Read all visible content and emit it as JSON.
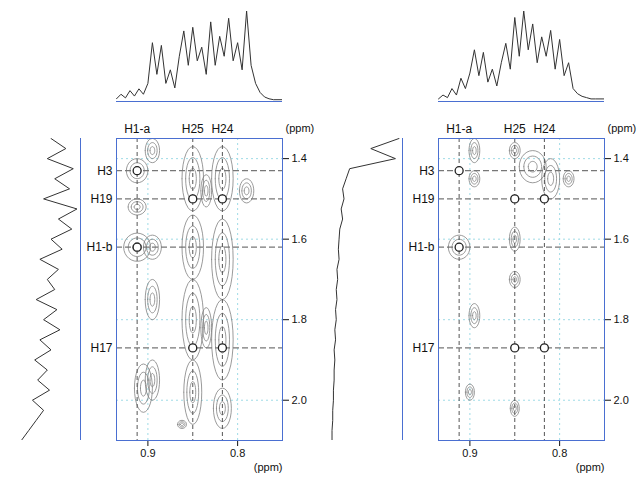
{
  "chart_data": [
    {
      "type": "contour",
      "color": "#808080",
      "grid": true,
      "x_label": "(ppm)",
      "y_label": "(ppm)",
      "xlim": [
        0.935,
        0.75
      ],
      "xticks": [
        0.9,
        0.8
      ],
      "ylim": [
        1.35,
        2.1
      ],
      "yticks": [
        1.4,
        1.6,
        1.8,
        {
          "value": 2.0,
          "label": "2.0"
        }
      ],
      "columns": [
        {
          "label": "H1-a",
          "x": 0.912
        },
        {
          "label": "H25",
          "x": 0.85
        },
        {
          "label": "H24",
          "x": 0.817
        }
      ],
      "rows": [
        {
          "label": "H3",
          "y": 1.43
        },
        {
          "label": "H19",
          "y": 1.5
        },
        {
          "label": "H1-b",
          "y": 1.62
        },
        {
          "label": "H17",
          "y": 1.87
        }
      ],
      "markers": [
        {
          "x": 0.912,
          "y": 1.43
        },
        {
          "x": 0.912,
          "y": 1.62
        },
        {
          "x": 0.85,
          "y": 1.5
        },
        {
          "x": 0.817,
          "y": 1.5
        },
        {
          "x": 0.85,
          "y": 1.87
        },
        {
          "x": 0.817,
          "y": 1.87
        }
      ],
      "peaks": [
        {
          "x": 0.912,
          "y": 1.43,
          "dx": 0.012,
          "dy": 0.03
        },
        {
          "x": 0.912,
          "y": 1.62,
          "dx": 0.015,
          "dy": 0.035
        },
        {
          "x": 0.912,
          "y": 1.52,
          "dx": 0.01,
          "dy": 0.02
        },
        {
          "x": 0.905,
          "y": 1.97,
          "dx": 0.01,
          "dy": 0.06
        },
        {
          "x": 0.895,
          "y": 1.38,
          "dx": 0.008,
          "dy": 0.03
        },
        {
          "x": 0.895,
          "y": 1.62,
          "dx": 0.01,
          "dy": 0.03
        },
        {
          "x": 0.895,
          "y": 1.75,
          "dx": 0.008,
          "dy": 0.05
        },
        {
          "x": 0.895,
          "y": 1.95,
          "dx": 0.008,
          "dy": 0.05
        },
        {
          "x": 0.85,
          "y": 1.45,
          "dx": 0.012,
          "dy": 0.08
        },
        {
          "x": 0.85,
          "y": 1.62,
          "dx": 0.012,
          "dy": 0.08
        },
        {
          "x": 0.85,
          "y": 1.8,
          "dx": 0.012,
          "dy": 0.1
        },
        {
          "x": 0.85,
          "y": 1.98,
          "dx": 0.01,
          "dy": 0.08
        },
        {
          "x": 0.817,
          "y": 1.45,
          "dx": 0.012,
          "dy": 0.08
        },
        {
          "x": 0.817,
          "y": 1.65,
          "dx": 0.012,
          "dy": 0.1
        },
        {
          "x": 0.817,
          "y": 1.85,
          "dx": 0.012,
          "dy": 0.1
        },
        {
          "x": 0.817,
          "y": 2.02,
          "dx": 0.01,
          "dy": 0.05
        },
        {
          "x": 0.835,
          "y": 1.48,
          "dx": 0.006,
          "dy": 0.04
        },
        {
          "x": 0.835,
          "y": 1.82,
          "dx": 0.006,
          "dy": 0.05
        },
        {
          "x": 0.79,
          "y": 1.48,
          "dx": 0.008,
          "dy": 0.03
        },
        {
          "x": 0.862,
          "y": 2.06,
          "dx": 0.005,
          "dy": 0.01
        }
      ],
      "top_projection": {
        "x": [
          0.935,
          0.93,
          0.925,
          0.92,
          0.915,
          0.91,
          0.905,
          0.9,
          0.895,
          0.89,
          0.885,
          0.88,
          0.875,
          0.87,
          0.865,
          0.86,
          0.855,
          0.85,
          0.845,
          0.84,
          0.835,
          0.83,
          0.825,
          0.82,
          0.815,
          0.81,
          0.805,
          0.8,
          0.795,
          0.79,
          0.785,
          0.78,
          0.775,
          0.77,
          0.765,
          0.76,
          0.755,
          0.75
        ],
        "values": [
          3,
          8,
          4,
          12,
          6,
          14,
          8,
          20,
          65,
          30,
          62,
          20,
          35,
          15,
          50,
          78,
          40,
          82,
          45,
          60,
          30,
          88,
          40,
          72,
          50,
          92,
          45,
          65,
          35,
          100,
          40,
          20,
          10,
          5,
          3,
          2,
          2,
          2
        ]
      },
      "left_projection": {
        "y": [
          1.35,
          1.375,
          1.4,
          1.425,
          1.45,
          1.475,
          1.5,
          1.525,
          1.55,
          1.575,
          1.6,
          1.625,
          1.65,
          1.675,
          1.7,
          1.725,
          1.75,
          1.775,
          1.8,
          1.825,
          1.85,
          1.875,
          1.9,
          1.925,
          1.95,
          1.975,
          2.0,
          2.025,
          2.05,
          2.075,
          2.1
        ],
        "values": [
          60,
          80,
          55,
          90,
          65,
          85,
          50,
          95,
          70,
          88,
          60,
          75,
          45,
          70,
          55,
          65,
          40,
          68,
          50,
          72,
          45,
          60,
          38,
          55,
          42,
          58,
          35,
          50,
          40,
          30,
          20
        ]
      }
    },
    {
      "type": "contour",
      "color": "#808080",
      "grid": true,
      "x_label": "(ppm)",
      "y_label": "(ppm)",
      "xlim": [
        0.935,
        0.75
      ],
      "xticks": [
        0.9,
        0.8
      ],
      "ylim": [
        1.35,
        2.1
      ],
      "yticks": [
        1.4,
        1.6,
        1.8,
        {
          "value": 2.0,
          "label": "2.0"
        }
      ],
      "columns": [
        {
          "label": "H1-a",
          "x": 0.912
        },
        {
          "label": "H25",
          "x": 0.85
        },
        {
          "label": "H24",
          "x": 0.817
        }
      ],
      "rows": [
        {
          "label": "H3",
          "y": 1.43
        },
        {
          "label": "H19",
          "y": 1.5
        },
        {
          "label": "H1-b",
          "y": 1.62
        },
        {
          "label": "H17",
          "y": 1.87
        }
      ],
      "markers": [
        {
          "x": 0.912,
          "y": 1.43
        },
        {
          "x": 0.912,
          "y": 1.62
        },
        {
          "x": 0.85,
          "y": 1.5
        },
        {
          "x": 0.817,
          "y": 1.5
        },
        {
          "x": 0.85,
          "y": 1.87
        },
        {
          "x": 0.817,
          "y": 1.87
        }
      ],
      "peaks": [
        {
          "x": 0.912,
          "y": 1.62,
          "dx": 0.012,
          "dy": 0.03
        },
        {
          "x": 0.895,
          "y": 1.38,
          "dx": 0.006,
          "dy": 0.03
        },
        {
          "x": 0.895,
          "y": 1.45,
          "dx": 0.006,
          "dy": 0.02
        },
        {
          "x": 0.85,
          "y": 1.38,
          "dx": 0.006,
          "dy": 0.02
        },
        {
          "x": 0.83,
          "y": 1.42,
          "dx": 0.015,
          "dy": 0.04
        },
        {
          "x": 0.81,
          "y": 1.45,
          "dx": 0.01,
          "dy": 0.05
        },
        {
          "x": 0.895,
          "y": 1.79,
          "dx": 0.006,
          "dy": 0.03
        },
        {
          "x": 0.85,
          "y": 1.6,
          "dx": 0.006,
          "dy": 0.03
        },
        {
          "x": 0.85,
          "y": 1.7,
          "dx": 0.006,
          "dy": 0.02
        },
        {
          "x": 0.85,
          "y": 2.02,
          "dx": 0.005,
          "dy": 0.02
        },
        {
          "x": 0.9,
          "y": 1.98,
          "dx": 0.005,
          "dy": 0.02
        },
        {
          "x": 0.79,
          "y": 1.45,
          "dx": 0.006,
          "dy": 0.02
        }
      ],
      "top_projection": {
        "x": [
          0.935,
          0.93,
          0.925,
          0.92,
          0.915,
          0.91,
          0.905,
          0.9,
          0.895,
          0.89,
          0.885,
          0.88,
          0.875,
          0.87,
          0.865,
          0.86,
          0.855,
          0.85,
          0.845,
          0.84,
          0.835,
          0.83,
          0.825,
          0.82,
          0.815,
          0.81,
          0.805,
          0.8,
          0.795,
          0.79,
          0.785,
          0.78,
          0.775,
          0.77,
          0.765,
          0.76,
          0.755,
          0.75
        ],
        "values": [
          2,
          5,
          3,
          10,
          5,
          18,
          10,
          22,
          40,
          20,
          38,
          15,
          25,
          12,
          30,
          45,
          25,
          65,
          35,
          70,
          40,
          60,
          30,
          50,
          35,
          55,
          25,
          48,
          20,
          30,
          10,
          6,
          4,
          3,
          2,
          2,
          2,
          2
        ]
      },
      "left_projection": {
        "y": [
          1.35,
          1.375,
          1.4,
          1.425,
          1.45,
          1.475,
          1.5,
          1.525,
          1.55,
          1.575,
          1.6,
          1.625,
          1.65,
          1.675,
          1.7,
          1.725,
          1.75,
          1.775,
          1.8,
          1.825,
          1.85,
          1.875,
          1.9,
          1.925,
          1.95,
          1.975,
          2.0,
          2.025,
          2.05,
          2.075,
          2.1
        ],
        "values": [
          100,
          60,
          95,
          30,
          25,
          20,
          22,
          18,
          20,
          16,
          15,
          14,
          15,
          12,
          13,
          11,
          12,
          10,
          11,
          9,
          10,
          8,
          9,
          8,
          8,
          7,
          7,
          6,
          6,
          5,
          5
        ]
      }
    }
  ]
}
